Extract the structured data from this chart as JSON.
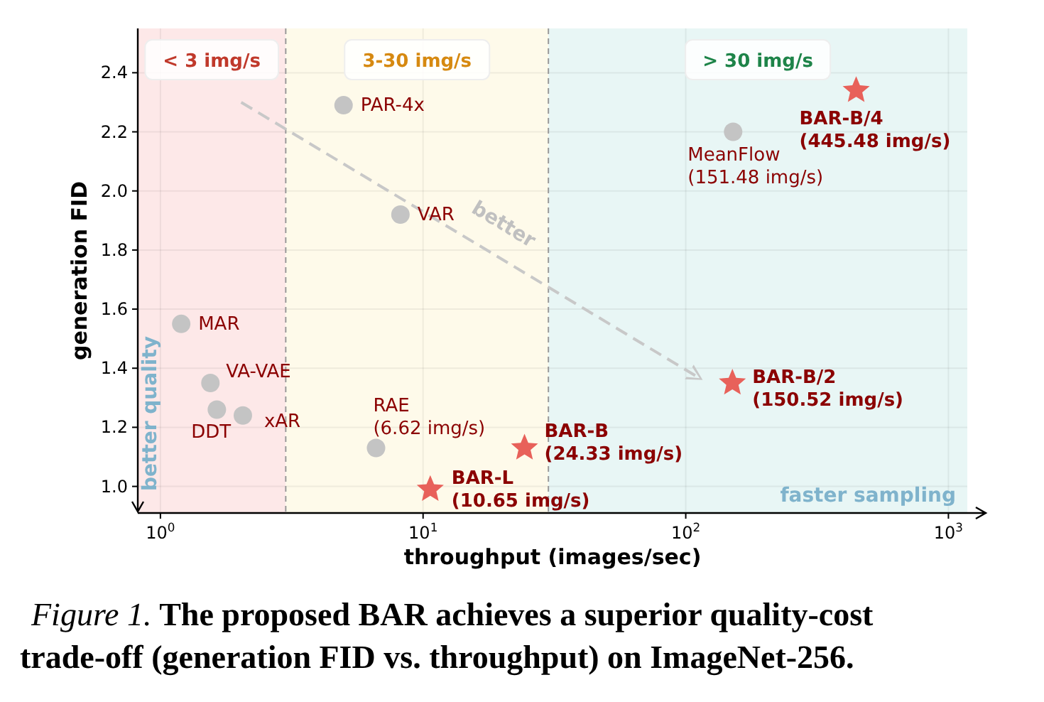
{
  "chart_data": {
    "type": "scatter",
    "ylabel": "generation FID",
    "xlabel": "throughput (images/sec)",
    "log": "x",
    "xlim": [
      0.82,
      1180
    ],
    "ylim": [
      0.91,
      2.55
    ],
    "xticks": [
      {
        "value": 1,
        "label": "10$^{0}$"
      },
      {
        "value": 10,
        "label": "10$^{1}$"
      },
      {
        "value": 100,
        "label": "10$^{2}$"
      },
      {
        "value": 1000,
        "label": "10$^{3}$"
      }
    ],
    "yticks": [
      {
        "value": 1,
        "label": "1.0"
      },
      {
        "value": 1.2,
        "label": "1.2"
      },
      {
        "value": 1.4,
        "label": "1.4"
      },
      {
        "value": 1.6,
        "label": "1.6"
      },
      {
        "value": 1.8,
        "label": "1.8"
      },
      {
        "value": 2,
        "label": "2.0"
      },
      {
        "value": 2.2,
        "label": "2.2"
      },
      {
        "value": 2.4,
        "label": "2.4"
      }
    ],
    "grid": true,
    "series": [
      {
        "color": "#c4c4c4",
        "marker": "circle",
        "x": [
          4.98,
          8.2,
          1.2,
          1.55,
          1.64,
          2.06,
          6.62,
          151.48
        ],
        "values": [
          2.29,
          1.92,
          1.55,
          1.35,
          1.26,
          1.24,
          1.13,
          2.2
        ]
      },
      {
        "color": "#e8615a",
        "marker": "star",
        "x": [
          10.65,
          24.33,
          150.52,
          445.48
        ],
        "values": [
          0.99,
          1.13,
          1.35,
          2.34
        ]
      }
    ],
    "bands": [
      {
        "axis": "x",
        "from": 0.82,
        "to": 3,
        "label": "< 3 img/s",
        "color": "#fde8e8"
      },
      {
        "axis": "x",
        "from": 3,
        "to": 30,
        "label": "3-30 img/s",
        "color": "#fefaea"
      },
      {
        "axis": "x",
        "from": 30,
        "to": 1180,
        "label": "> 30 img/s",
        "color": "#e8f6f5"
      }
    ],
    "ref_lines": [
      {
        "axis": "x",
        "value": 3,
        "color": "#999999",
        "line_style": "dashed"
      },
      {
        "axis": "x",
        "value": 30,
        "color": "#999999",
        "line_style": "dashed"
      }
    ],
    "annotations": [
      {
        "text": "PAR-4x",
        "x": 4.98,
        "y": 2.29
      },
      {
        "text": "VAR",
        "x": 8.2,
        "y": 1.92
      },
      {
        "text": "MAR",
        "x": 1.2,
        "y": 1.55
      },
      {
        "text": "VA-VAE",
        "x": 1.55,
        "y": 1.35
      },
      {
        "text": "DDT",
        "x": 1.64,
        "y": 1.26
      },
      {
        "text": "xAR",
        "x": 2.06,
        "y": 1.24
      },
      {
        "text": "RAE\n(6.62 img/s)",
        "x": 6.62,
        "y": 1.13
      },
      {
        "text": "MeanFlow\n(151.48 img/s)",
        "x": 151.48,
        "y": 2.2
      },
      {
        "text": "BAR-L\n(10.65 img/s)",
        "x": 10.65,
        "y": 0.99
      },
      {
        "text": "BAR-B\n(24.33 img/s)",
        "x": 24.33,
        "y": 1.13
      },
      {
        "text": "BAR-B/2\n(150.52 img/s)",
        "x": 150.52,
        "y": 1.35
      },
      {
        "text": "BAR-B/4\n(445.48 img/s)",
        "x": 445.48,
        "y": 2.34
      },
      "better",
      "better quality",
      "faster sampling",
      "Figure 1. The proposed BAR achieves a superior quality-cost\ntrade-off (generation FID vs. throughput) on ImageNet-256."
    ]
  }
}
